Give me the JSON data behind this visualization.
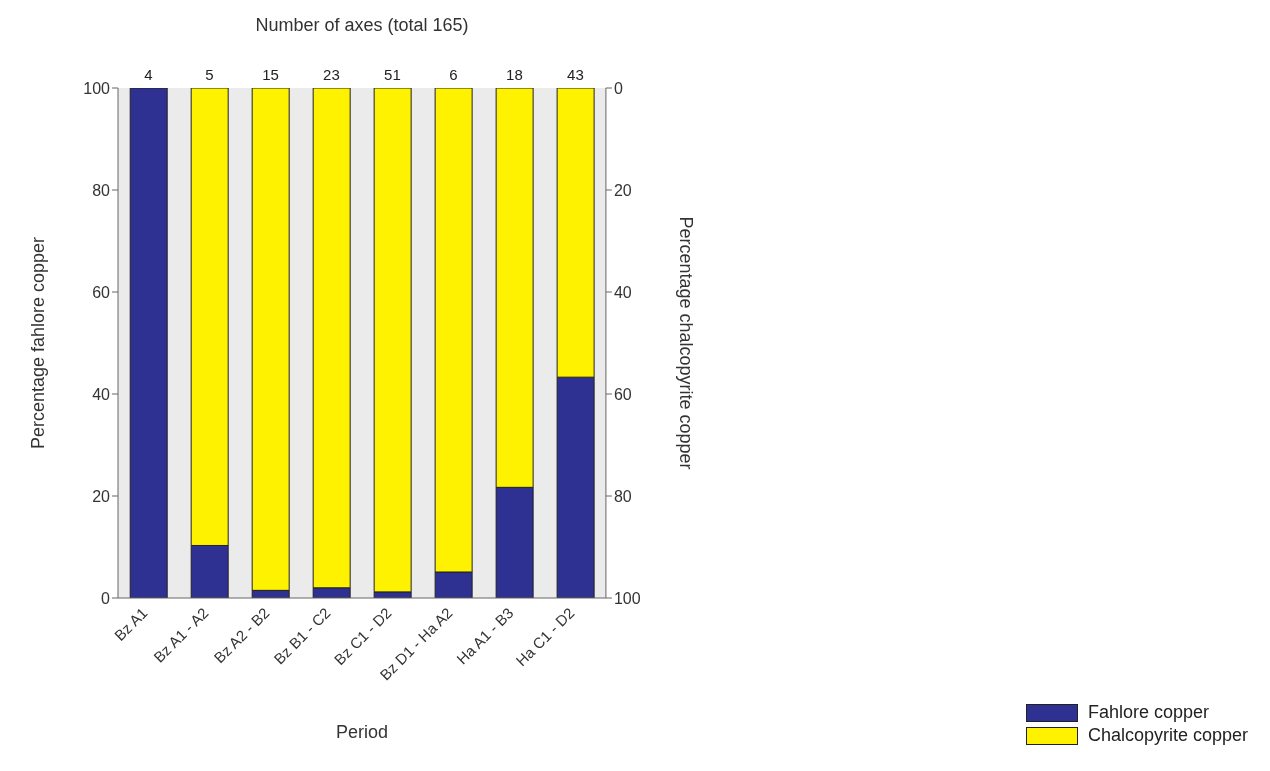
{
  "chart_data": {
    "type": "bar",
    "stacked": true,
    "xlabel": "Period",
    "ylabel": "Percentage fahlore copper",
    "y2label": "Percentage chalcopyrite copper",
    "x2label": "Number of axes (total 165)",
    "categories": [
      "Bz A1",
      "Bz A1 - A2",
      "Bz A2 - B2",
      "Bz B1 - C2",
      "Bz C1 - D2",
      "Bz D1 - Ha A2",
      "Ha A1 - B3",
      "Ha C1 - D2"
    ],
    "series": [
      {
        "name": "Fahlore copper",
        "color": "#2e3192",
        "values": [
          100,
          10.3,
          1.5,
          2,
          1.2,
          5.1,
          21.7,
          43.3
        ]
      },
      {
        "name": "Chalcopyrite copper",
        "color": "#fff200",
        "values": [
          0,
          89.7,
          98.5,
          98,
          98.8,
          94.9,
          78.3,
          56.7
        ]
      }
    ],
    "ylim": [
      0,
      100
    ],
    "yticks": [
      0,
      20,
      40,
      60,
      80,
      100
    ],
    "y2lim": [
      100,
      0
    ],
    "y2ticks": [
      0,
      20,
      40,
      60,
      80,
      100
    ],
    "annotations": [
      "4",
      "5",
      "15",
      "23",
      "51",
      "6",
      "18",
      "43"
    ],
    "legend": "bottom right",
    "grid": false
  }
}
